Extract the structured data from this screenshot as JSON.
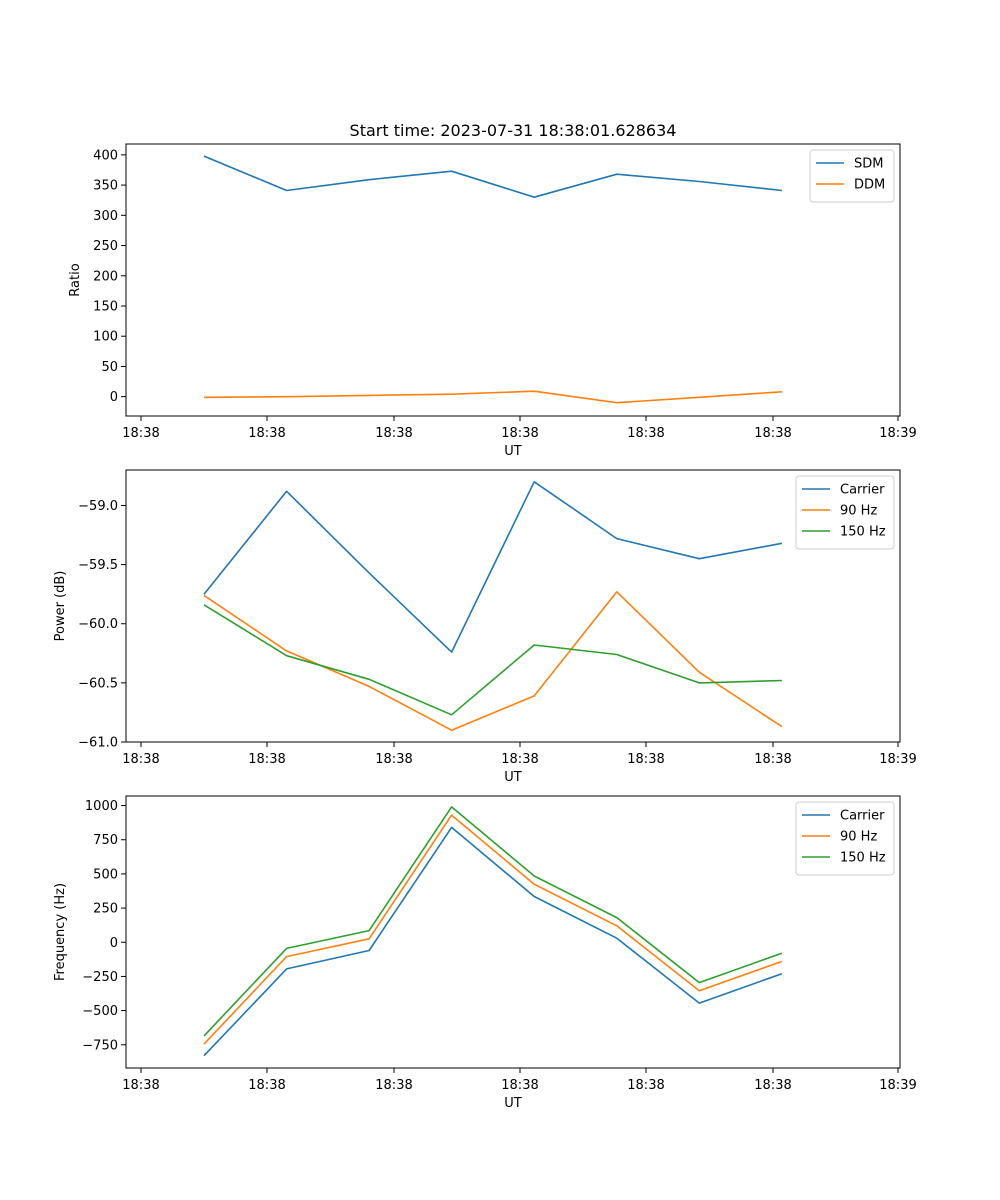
{
  "title": "Start time: 2023-07-31 18:38:01.628634",
  "chart_data": [
    {
      "type": "line",
      "xlabel": "UT",
      "ylabel": "Ratio",
      "xtick_labels": [
        "18:38",
        "18:38",
        "18:38",
        "18:38",
        "18:38",
        "18:38",
        "18:39"
      ],
      "ylim": [
        -32,
        418
      ],
      "yticks": [
        0,
        50,
        100,
        150,
        200,
        250,
        300,
        350,
        400
      ],
      "ytick_labels": [
        "0",
        "50",
        "100",
        "150",
        "200",
        "250",
        "300",
        "350",
        "400"
      ],
      "legend": "top-right",
      "series": [
        {
          "name": "SDM",
          "color": "#1f77b4",
          "values": [
            398,
            341,
            359,
            373,
            330,
            368,
            356,
            341
          ]
        },
        {
          "name": "DDM",
          "color": "#ff7f0e",
          "values": [
            -1,
            0,
            2,
            4,
            9,
            -10,
            -1,
            8
          ]
        }
      ]
    },
    {
      "type": "line",
      "xlabel": "UT",
      "ylabel": "Power (dB)",
      "xtick_labels": [
        "18:38",
        "18:38",
        "18:38",
        "18:38",
        "18:38",
        "18:38",
        "18:39"
      ],
      "ylim": [
        -61.0,
        -58.7
      ],
      "yticks": [
        -61.0,
        -60.5,
        -60.0,
        -59.5,
        -59.0
      ],
      "ytick_labels": [
        "−61.0",
        "−60.5",
        "−60.0",
        "−59.5",
        "−59.0"
      ],
      "legend": "top-right",
      "series": [
        {
          "name": "Carrier",
          "color": "#1f77b4",
          "values": [
            -59.75,
            -58.88,
            -59.57,
            -60.24,
            -58.8,
            -59.28,
            -59.45,
            -59.32
          ]
        },
        {
          "name": "90 Hz",
          "color": "#ff7f0e",
          "values": [
            -59.76,
            -60.23,
            -60.53,
            -60.9,
            -60.61,
            -59.73,
            -60.41,
            -60.87
          ]
        },
        {
          "name": "150 Hz",
          "color": "#2ca02c",
          "values": [
            -59.84,
            -60.27,
            -60.47,
            -60.77,
            -60.18,
            -60.26,
            -60.5,
            -60.48
          ]
        }
      ]
    },
    {
      "type": "line",
      "xlabel": "UT",
      "ylabel": "Frequency (Hz)",
      "xtick_labels": [
        "18:38",
        "18:38",
        "18:38",
        "18:38",
        "18:38",
        "18:38",
        "18:39"
      ],
      "ylim": [
        -920,
        1070
      ],
      "yticks": [
        -750,
        -500,
        -250,
        0,
        250,
        500,
        750,
        1000
      ],
      "ytick_labels": [
        "−750",
        "−500",
        "−250",
        "0",
        "250",
        "500",
        "750",
        "1000"
      ],
      "legend": "top-right",
      "series": [
        {
          "name": "Carrier",
          "color": "#1f77b4",
          "values": [
            -830,
            -195,
            -60,
            840,
            335,
            30,
            -445,
            -230
          ]
        },
        {
          "name": "90 Hz",
          "color": "#ff7f0e",
          "values": [
            -745,
            -105,
            25,
            930,
            425,
            120,
            -355,
            -140
          ]
        },
        {
          "name": "150 Hz",
          "color": "#2ca02c",
          "values": [
            -685,
            -45,
            85,
            990,
            485,
            180,
            -295,
            -80
          ]
        }
      ]
    }
  ]
}
